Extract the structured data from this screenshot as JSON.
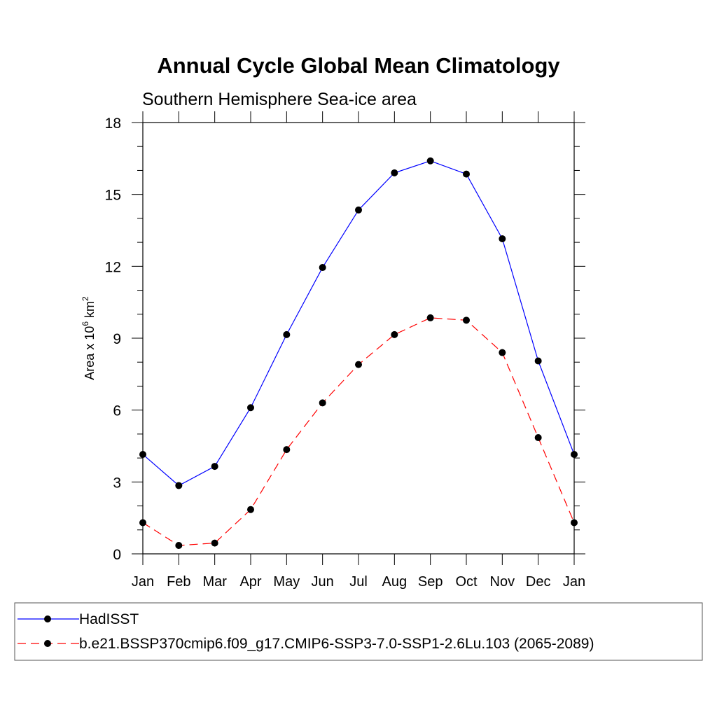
{
  "chart_data": {
    "type": "line",
    "title": "Annual Cycle Global Mean Climatology",
    "subtitle": "Southern Hemisphere Sea-ice area",
    "xlabel": "",
    "ylabel": {
      "prefix": "Area x 10",
      "exponent": "6",
      "unit": " km",
      "unit_exponent": "2"
    },
    "categories": [
      "Jan",
      "Feb",
      "Mar",
      "Apr",
      "May",
      "Jun",
      "Jul",
      "Aug",
      "Sep",
      "Oct",
      "Nov",
      "Dec",
      "Jan"
    ],
    "yticks": [
      0,
      3,
      6,
      9,
      12,
      15,
      18
    ],
    "ylim": [
      0,
      18
    ],
    "grid": false,
    "legend_position": "bottom",
    "series": [
      {
        "name": "HadISST",
        "color": "#0000ff",
        "dash": "solid",
        "values": [
          4.15,
          2.85,
          3.65,
          6.1,
          9.15,
          11.95,
          14.35,
          15.9,
          16.4,
          15.85,
          13.15,
          8.05,
          4.15
        ]
      },
      {
        "name": "b.e21.BSSP370cmip6.f09_g17.CMIP6-SSP3-7.0-SSP1-2.6Lu.103 (2065-2089)",
        "color": "#ff0000",
        "dash": "dashed",
        "values": [
          1.3,
          0.35,
          0.45,
          1.85,
          4.35,
          6.3,
          7.9,
          9.15,
          9.85,
          9.75,
          8.4,
          4.85,
          1.3
        ]
      }
    ]
  }
}
